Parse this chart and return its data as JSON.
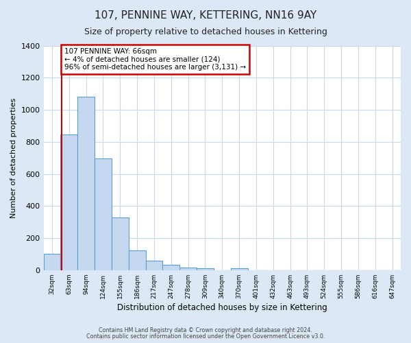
{
  "title": "107, PENNINE WAY, KETTERING, NN16 9AY",
  "subtitle": "Size of property relative to detached houses in Kettering",
  "xlabel": "Distribution of detached houses by size in Kettering",
  "ylabel": "Number of detached properties",
  "bin_labels": [
    "32sqm",
    "63sqm",
    "94sqm",
    "124sqm",
    "155sqm",
    "186sqm",
    "217sqm",
    "247sqm",
    "278sqm",
    "309sqm",
    "340sqm",
    "370sqm",
    "401sqm",
    "432sqm",
    "463sqm",
    "493sqm",
    "524sqm",
    "555sqm",
    "586sqm",
    "616sqm",
    "647sqm"
  ],
  "bar_heights": [
    100,
    845,
    1080,
    695,
    330,
    125,
    58,
    32,
    18,
    10,
    0,
    12,
    0,
    0,
    0,
    0,
    0,
    0,
    0,
    0,
    0
  ],
  "bar_color": "#c5d8f0",
  "bar_edge_color": "#5a9fd4",
  "ylim": [
    0,
    1400
  ],
  "yticks": [
    0,
    200,
    400,
    600,
    800,
    1000,
    1200,
    1400
  ],
  "marker_label_line1": "107 PENNINE WAY: 66sqm",
  "marker_label_line2": "← 4% of detached houses are smaller (124)",
  "marker_label_line3": "96% of semi-detached houses are larger (3,131) →",
  "marker_color": "#cc0000",
  "footnote_line1": "Contains HM Land Registry data © Crown copyright and database right 2024.",
  "footnote_line2": "Contains public sector information licensed under the Open Government Licence v3.0.",
  "outer_background": "#dce8f5",
  "plot_background": "#ffffff",
  "grid_color": "#c8d8e8"
}
